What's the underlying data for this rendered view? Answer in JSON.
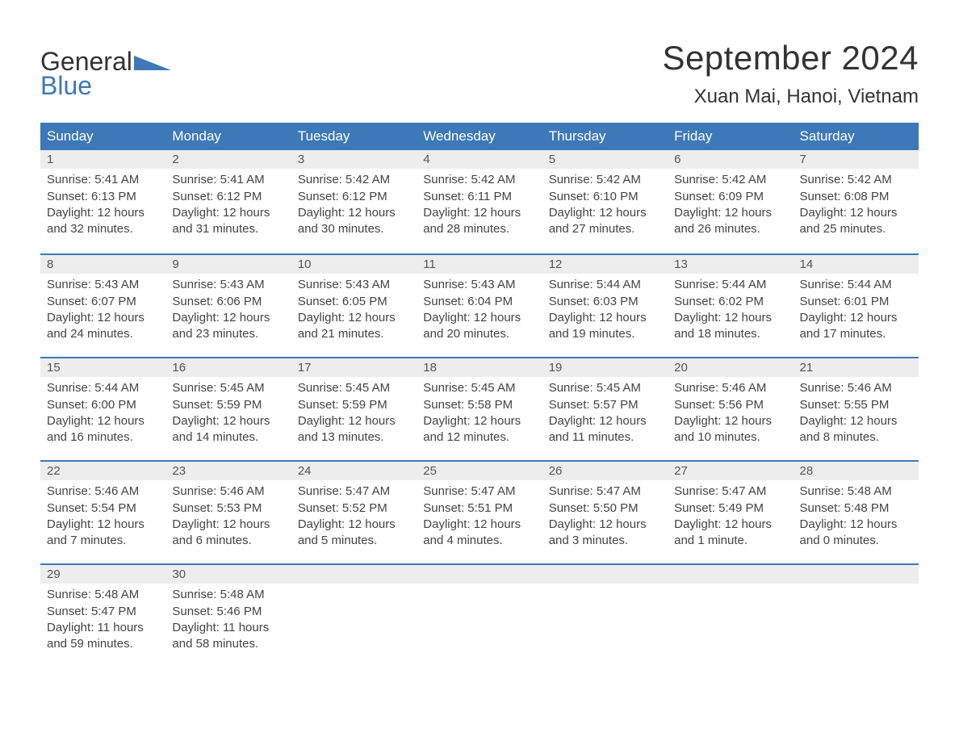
{
  "logo": {
    "line1": "General",
    "line2": "Blue",
    "accent_color": "#3d78b8"
  },
  "header": {
    "month_title": "September 2024",
    "location": "Xuan Mai, Hanoi, Vietnam"
  },
  "style": {
    "header_bg": "#3d78b8",
    "header_text": "#ffffff",
    "daynum_bg": "#ededed",
    "week_divider": "#3d78b8",
    "body_text": "#444444",
    "title_text": "#333333",
    "page_bg": "#ffffff",
    "title_fontsize": 42,
    "location_fontsize": 24,
    "dow_fontsize": 17,
    "cell_fontsize": 15
  },
  "days_of_week": [
    "Sunday",
    "Monday",
    "Tuesday",
    "Wednesday",
    "Thursday",
    "Friday",
    "Saturday"
  ],
  "weeks": [
    [
      {
        "num": "1",
        "sunrise": "5:41 AM",
        "sunset": "6:13 PM",
        "daylight": "12 hours and 32 minutes."
      },
      {
        "num": "2",
        "sunrise": "5:41 AM",
        "sunset": "6:12 PM",
        "daylight": "12 hours and 31 minutes."
      },
      {
        "num": "3",
        "sunrise": "5:42 AM",
        "sunset": "6:12 PM",
        "daylight": "12 hours and 30 minutes."
      },
      {
        "num": "4",
        "sunrise": "5:42 AM",
        "sunset": "6:11 PM",
        "daylight": "12 hours and 28 minutes."
      },
      {
        "num": "5",
        "sunrise": "5:42 AM",
        "sunset": "6:10 PM",
        "daylight": "12 hours and 27 minutes."
      },
      {
        "num": "6",
        "sunrise": "5:42 AM",
        "sunset": "6:09 PM",
        "daylight": "12 hours and 26 minutes."
      },
      {
        "num": "7",
        "sunrise": "5:42 AM",
        "sunset": "6:08 PM",
        "daylight": "12 hours and 25 minutes."
      }
    ],
    [
      {
        "num": "8",
        "sunrise": "5:43 AM",
        "sunset": "6:07 PM",
        "daylight": "12 hours and 24 minutes."
      },
      {
        "num": "9",
        "sunrise": "5:43 AM",
        "sunset": "6:06 PM",
        "daylight": "12 hours and 23 minutes."
      },
      {
        "num": "10",
        "sunrise": "5:43 AM",
        "sunset": "6:05 PM",
        "daylight": "12 hours and 21 minutes."
      },
      {
        "num": "11",
        "sunrise": "5:43 AM",
        "sunset": "6:04 PM",
        "daylight": "12 hours and 20 minutes."
      },
      {
        "num": "12",
        "sunrise": "5:44 AM",
        "sunset": "6:03 PM",
        "daylight": "12 hours and 19 minutes."
      },
      {
        "num": "13",
        "sunrise": "5:44 AM",
        "sunset": "6:02 PM",
        "daylight": "12 hours and 18 minutes."
      },
      {
        "num": "14",
        "sunrise": "5:44 AM",
        "sunset": "6:01 PM",
        "daylight": "12 hours and 17 minutes."
      }
    ],
    [
      {
        "num": "15",
        "sunrise": "5:44 AM",
        "sunset": "6:00 PM",
        "daylight": "12 hours and 16 minutes."
      },
      {
        "num": "16",
        "sunrise": "5:45 AM",
        "sunset": "5:59 PM",
        "daylight": "12 hours and 14 minutes."
      },
      {
        "num": "17",
        "sunrise": "5:45 AM",
        "sunset": "5:59 PM",
        "daylight": "12 hours and 13 minutes."
      },
      {
        "num": "18",
        "sunrise": "5:45 AM",
        "sunset": "5:58 PM",
        "daylight": "12 hours and 12 minutes."
      },
      {
        "num": "19",
        "sunrise": "5:45 AM",
        "sunset": "5:57 PM",
        "daylight": "12 hours and 11 minutes."
      },
      {
        "num": "20",
        "sunrise": "5:46 AM",
        "sunset": "5:56 PM",
        "daylight": "12 hours and 10 minutes."
      },
      {
        "num": "21",
        "sunrise": "5:46 AM",
        "sunset": "5:55 PM",
        "daylight": "12 hours and 8 minutes."
      }
    ],
    [
      {
        "num": "22",
        "sunrise": "5:46 AM",
        "sunset": "5:54 PM",
        "daylight": "12 hours and 7 minutes."
      },
      {
        "num": "23",
        "sunrise": "5:46 AM",
        "sunset": "5:53 PM",
        "daylight": "12 hours and 6 minutes."
      },
      {
        "num": "24",
        "sunrise": "5:47 AM",
        "sunset": "5:52 PM",
        "daylight": "12 hours and 5 minutes."
      },
      {
        "num": "25",
        "sunrise": "5:47 AM",
        "sunset": "5:51 PM",
        "daylight": "12 hours and 4 minutes."
      },
      {
        "num": "26",
        "sunrise": "5:47 AM",
        "sunset": "5:50 PM",
        "daylight": "12 hours and 3 minutes."
      },
      {
        "num": "27",
        "sunrise": "5:47 AM",
        "sunset": "5:49 PM",
        "daylight": "12 hours and 1 minute."
      },
      {
        "num": "28",
        "sunrise": "5:48 AM",
        "sunset": "5:48 PM",
        "daylight": "12 hours and 0 minutes."
      }
    ],
    [
      {
        "num": "29",
        "sunrise": "5:48 AM",
        "sunset": "5:47 PM",
        "daylight": "11 hours and 59 minutes."
      },
      {
        "num": "30",
        "sunrise": "5:48 AM",
        "sunset": "5:46 PM",
        "daylight": "11 hours and 58 minutes."
      },
      null,
      null,
      null,
      null,
      null
    ]
  ],
  "labels": {
    "sunrise_prefix": "Sunrise: ",
    "sunset_prefix": "Sunset: ",
    "daylight_prefix": "Daylight: "
  }
}
